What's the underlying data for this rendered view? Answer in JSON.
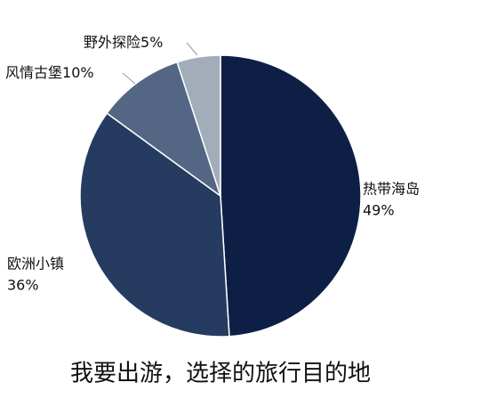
{
  "chart_data": {
    "type": "pie",
    "title": "我要出游，选择的旅行目的地",
    "categories": [
      "热带海岛",
      "欧洲小镇",
      "风情古堡",
      "野外探险"
    ],
    "values": [
      49,
      36,
      10,
      5
    ],
    "value_labels": [
      "49%",
      "36%",
      "10%",
      "5%"
    ],
    "colors": [
      "#0e1f45",
      "#253c60",
      "#536784",
      "#a3adba"
    ]
  }
}
